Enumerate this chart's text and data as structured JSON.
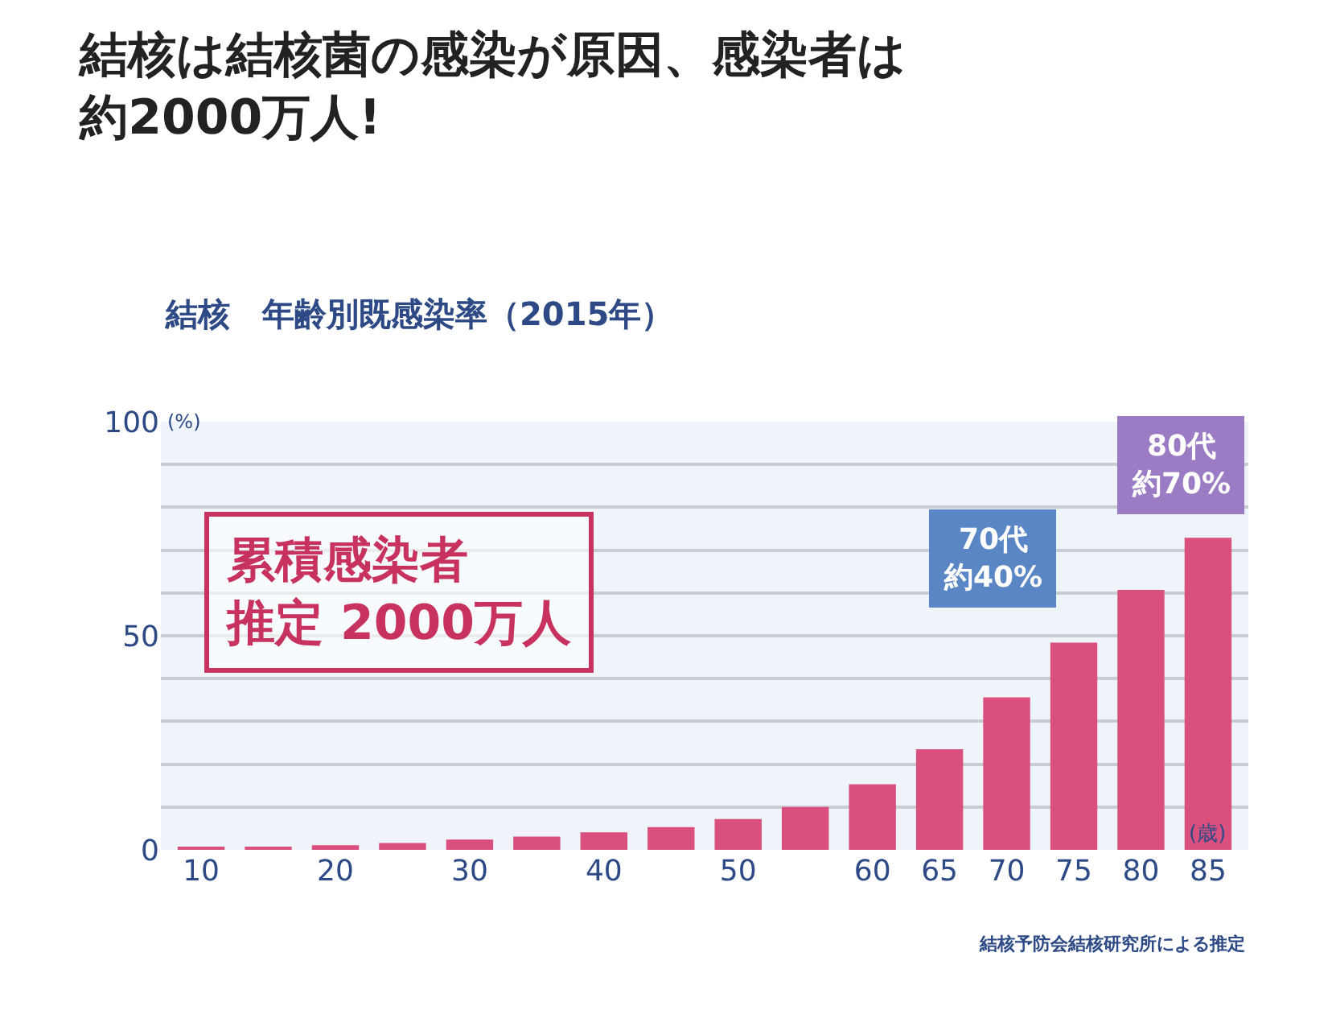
{
  "chart_data": {
    "type": "bar",
    "title": "結核は結核菌の感染が原因、感染者は約2000万人!",
    "subtitle": "結核　年齢別既感染率（2015年）",
    "xlabel": "(歳)",
    "ylabel": "(%)",
    "categories": [
      "10",
      null,
      "20",
      null,
      "30",
      null,
      "40",
      null,
      "50",
      null,
      "60",
      "65",
      "70",
      "75",
      "80",
      "85"
    ],
    "values": [
      0.4,
      0.6,
      1.1,
      1.6,
      2.4,
      3.1,
      4.1,
      5.3,
      7.2,
      10,
      15.3,
      23.5,
      35.6,
      48.4,
      60.7,
      72.9
    ],
    "color": "#d9507e",
    "ylim": [
      0,
      100
    ],
    "yticks": [
      0,
      {
        "value": 10,
        "label": null
      },
      {
        "value": 20,
        "label": null
      },
      {
        "value": 30,
        "label": null
      },
      {
        "value": 40,
        "label": null
      },
      50,
      {
        "value": 60,
        "label": null
      },
      {
        "value": 70,
        "label": null
      },
      {
        "value": 80,
        "label": null
      },
      {
        "value": 90,
        "label": null
      },
      100
    ],
    "grid": "y",
    "legend": false,
    "annotations": [
      "累積感染者推定 2000万人",
      "70代約40%",
      "80代約70%",
      "結核予防会結核研究所による推定"
    ]
  }
}
